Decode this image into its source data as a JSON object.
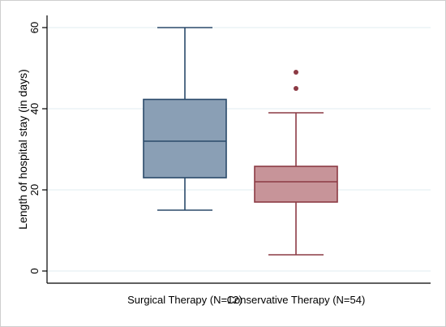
{
  "chart_data": {
    "type": "boxplot",
    "title": "",
    "xlabel": "",
    "ylabel": "Length of hospital stay (in days)",
    "ylim": [
      -3,
      63
    ],
    "yticks": [
      0,
      20,
      40,
      60
    ],
    "grid": true,
    "legend": "none",
    "categories": [
      "Surgical Therapy (N=12)",
      "Conservative Therapy (N=54)"
    ],
    "boxes": [
      {
        "category": "Surgical Therapy (N=12)",
        "whisker_low": 15,
        "q1": 23,
        "median": 32,
        "q3": 42.3,
        "whisker_high": 60,
        "outliers": [],
        "fill": "#8a9fb5",
        "stroke": "#2a4a6a"
      },
      {
        "category": "Conservative Therapy (N=54)",
        "whisker_low": 4,
        "q1": 17,
        "median": 22,
        "q3": 25.8,
        "whisker_high": 39,
        "outliers": [
          45,
          49
        ],
        "fill": "#c79499",
        "stroke": "#8c3a44"
      }
    ],
    "colors": {
      "gridline": "#e2ecf0",
      "axis": "#000000",
      "background": "#ffffff"
    }
  }
}
